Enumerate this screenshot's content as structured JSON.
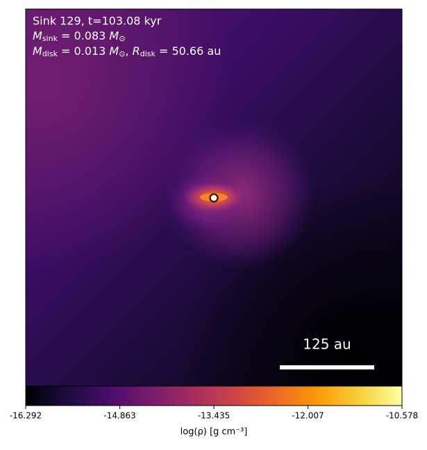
{
  "chart_data": {
    "type": "density-map",
    "title": "Sink 129, t=103.08 kyr",
    "annotations": [
      [
        {
          "text": "M",
          "kind": "italic"
        },
        {
          "text": "sink",
          "kind": "sub"
        },
        {
          "text": " = 0.083 ",
          "kind": "plain"
        },
        {
          "text": "M",
          "kind": "italic"
        },
        {
          "text": "⊙",
          "kind": "sub"
        }
      ],
      [
        {
          "text": "M",
          "kind": "italic"
        },
        {
          "text": "disk",
          "kind": "sub"
        },
        {
          "text": " = 0.013 ",
          "kind": "plain"
        },
        {
          "text": "M",
          "kind": "italic"
        },
        {
          "text": "⊙",
          "kind": "sub"
        },
        {
          "text": ", ",
          "kind": "plain"
        },
        {
          "text": "R",
          "kind": "italic"
        },
        {
          "text": "disk",
          "kind": "sub"
        },
        {
          "text": " = 50.66 au",
          "kind": "plain"
        }
      ]
    ],
    "scalebar_label": "125 au",
    "colorbar": {
      "label": "log(ρ) [g cm⁻³]",
      "colormap": "inferno",
      "lim": [
        -16.292,
        -10.578
      ],
      "ticks": [
        -16.292,
        -14.863,
        -13.435,
        -12.007,
        -10.578
      ]
    }
  }
}
